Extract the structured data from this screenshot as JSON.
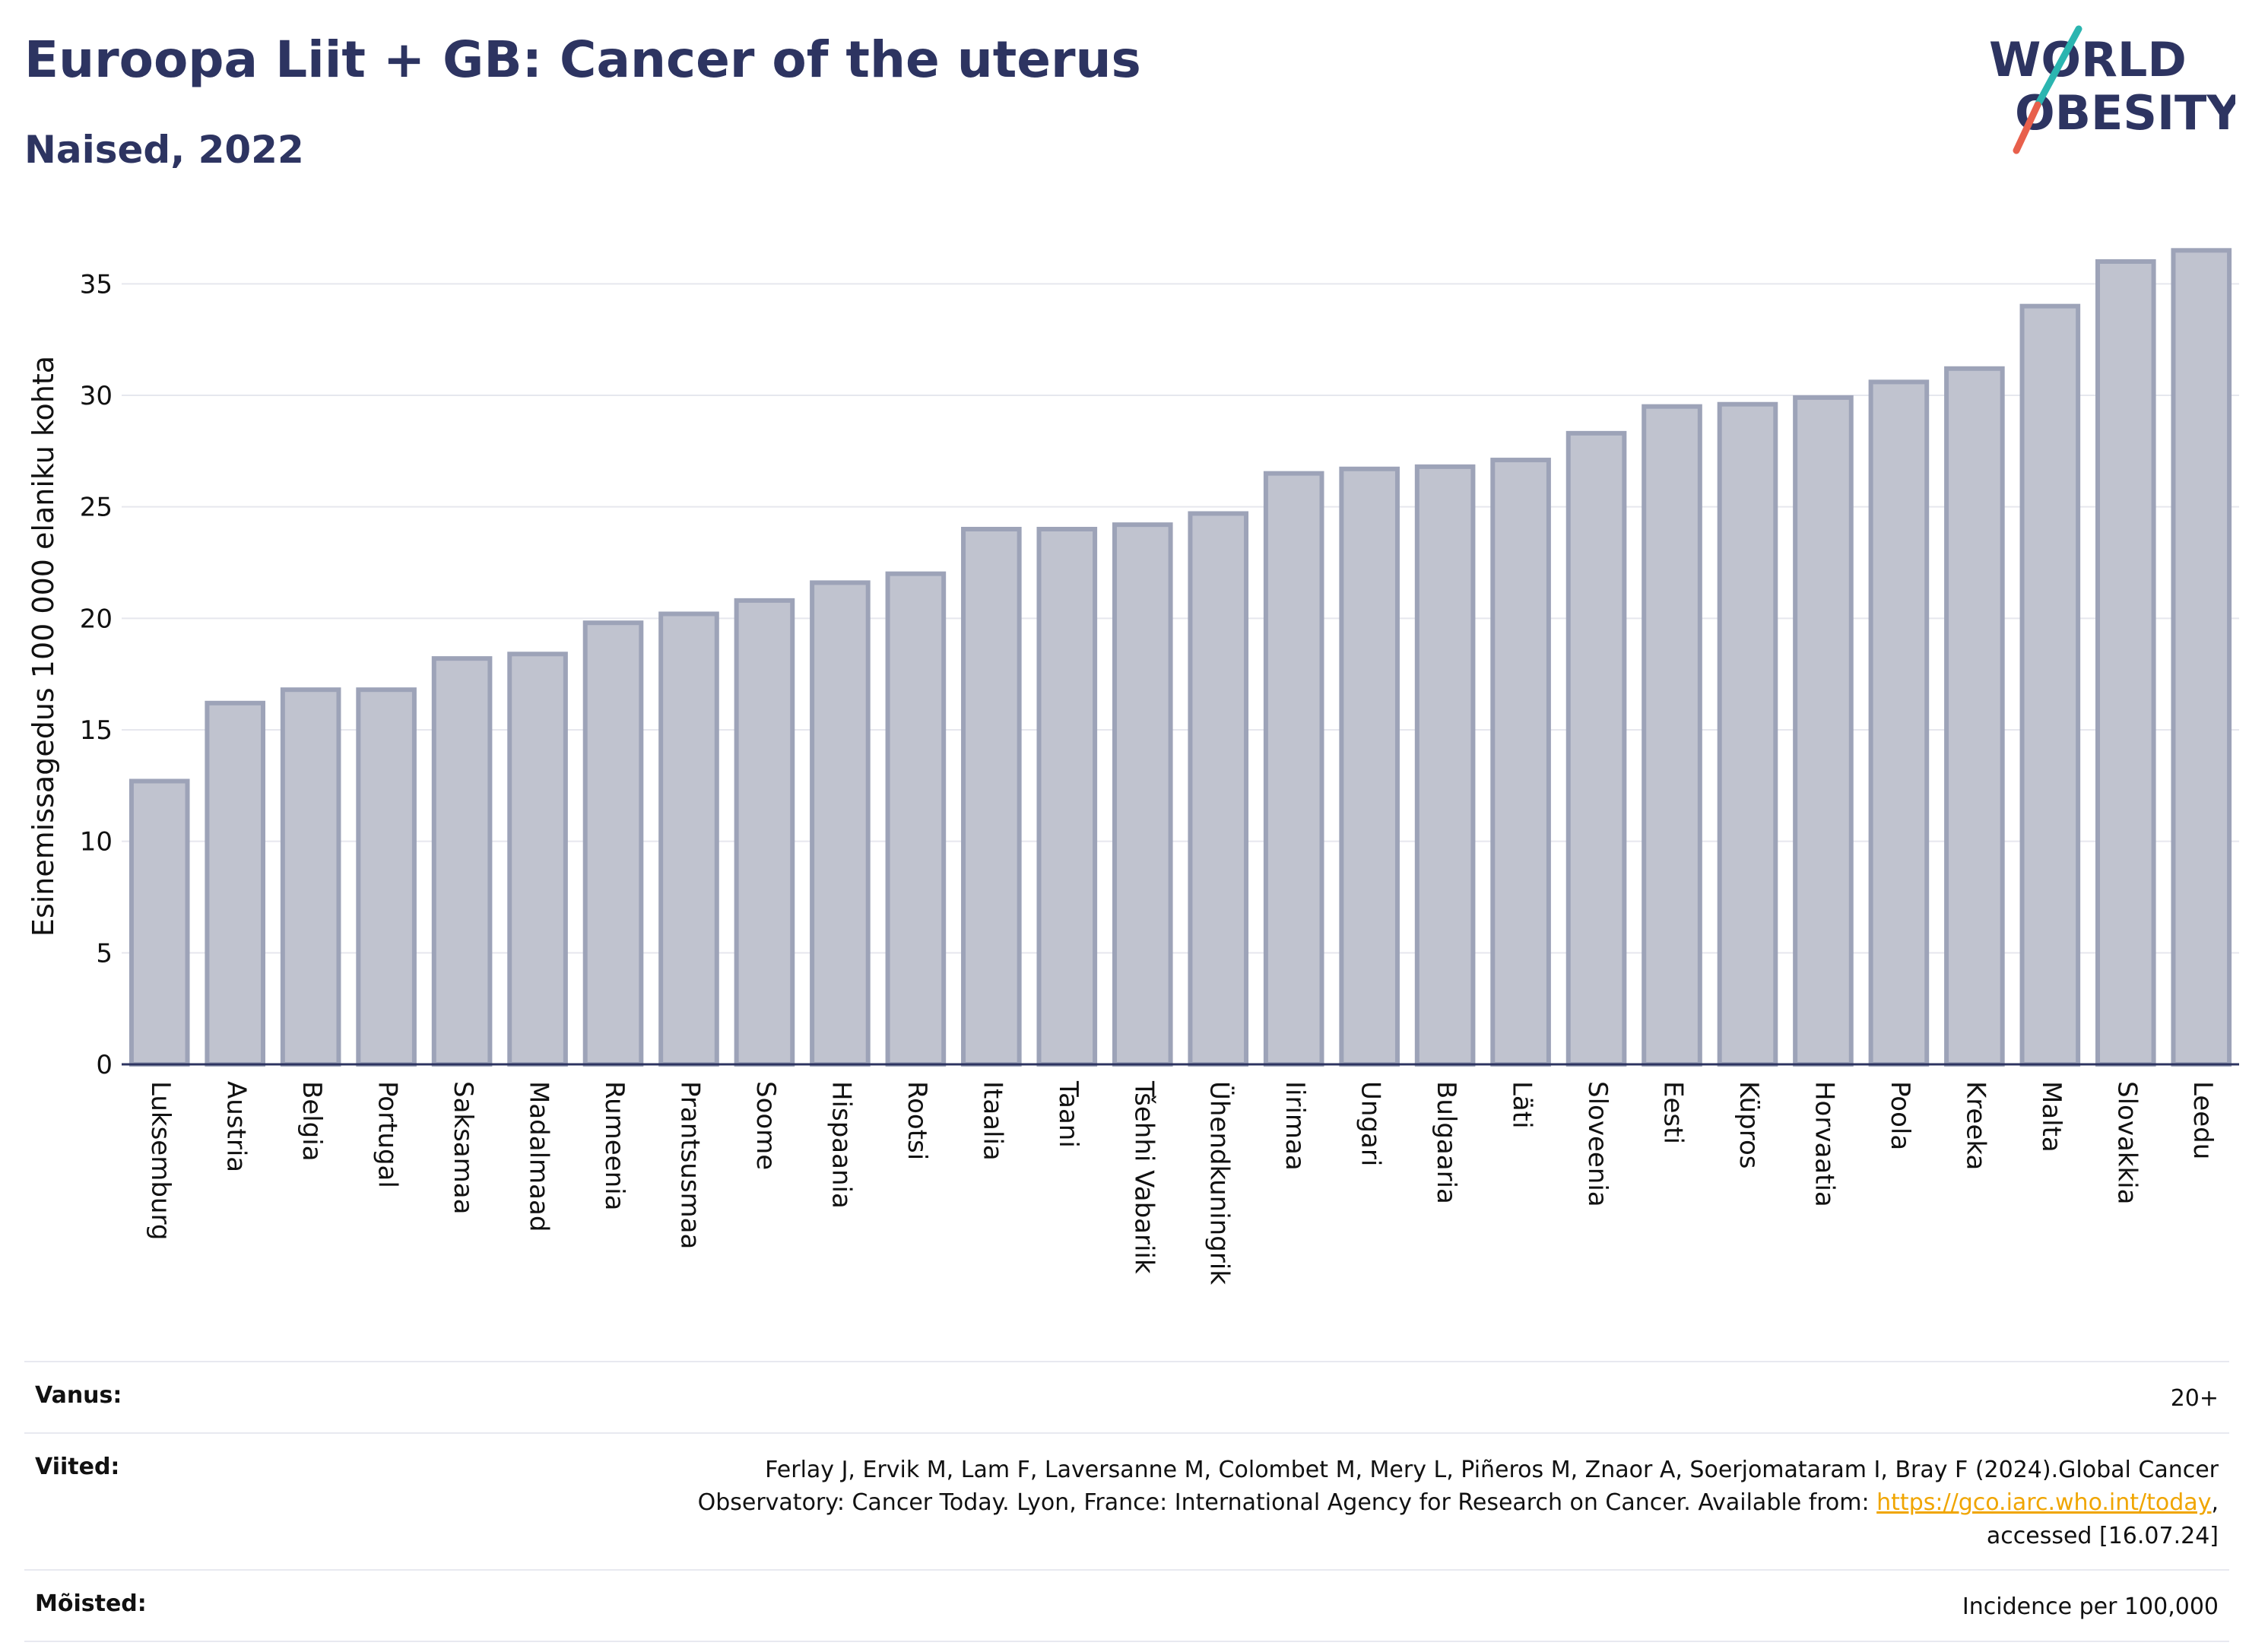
{
  "header": {
    "title": "Euroopa Liit + GB: Cancer of the uterus",
    "subtitle": "Naised, 2022"
  },
  "logo": {
    "line1": "WORLD",
    "line2": "OBESITY"
  },
  "chart_data": {
    "type": "bar",
    "title": "Euroopa Liit + GB: Cancer of the uterus",
    "subtitle": "Naised, 2022",
    "xlabel": "",
    "ylabel": "Esinemissagedus 100 000 elaniku kohta",
    "ylim": [
      0,
      37.5
    ],
    "yticks": [
      0,
      5,
      10,
      15,
      20,
      25,
      30,
      35
    ],
    "grid": true,
    "categories": [
      "Luksemburg",
      "Austria",
      "Belgia",
      "Portugal",
      "Saksamaa",
      "Madalmaad",
      "Rumeenia",
      "Prantsusmaa",
      "Soome",
      "Hispaania",
      "Rootsi",
      "Itaalia",
      "Taani",
      "Tšehhi Vabariik",
      "Ühendkuningrik",
      "Iirimaa",
      "Ungari",
      "Bulgaaria",
      "Läti",
      "Sloveenia",
      "Eesti",
      "Küpros",
      "Horvaatia",
      "Poola",
      "Kreeka",
      "Malta",
      "Slovakkia",
      "Leedu"
    ],
    "values": [
      12.7,
      16.2,
      16.8,
      16.8,
      18.2,
      18.4,
      19.8,
      20.2,
      20.8,
      21.6,
      22.0,
      24.0,
      24.0,
      24.2,
      24.7,
      26.5,
      26.7,
      26.8,
      27.1,
      28.3,
      29.5,
      29.6,
      29.9,
      30.6,
      31.2,
      34.0,
      36.0,
      36.5
    ],
    "bar_fill": "#c0c3cf",
    "bar_stroke": "#9da3b8"
  },
  "info": {
    "age_label": "Vanus:",
    "age_value": "20+",
    "refs_label": "Viited:",
    "refs_line1": "Ferlay J, Ervik M, Lam F, Laversanne M, Colombet M, Mery L, Piñeros M, Znaor A, Soerjomataram I, Bray F (2024).Global Cancer",
    "refs_line2_pre": "Observatory: Cancer Today. Lyon, France: International Agency for Research on Cancer. Available from: ",
    "refs_link": "https://gco.iarc.who.int/today",
    "refs_line2_post": ",",
    "refs_line3": "accessed [16.07.24]",
    "def_label": "Mõisted:",
    "def_value": "Incidence per 100,000"
  },
  "colors": {
    "title": "#2d3461",
    "link": "#f0a500",
    "logo_teal": "#2bb5b0",
    "logo_coral": "#e8604c"
  }
}
